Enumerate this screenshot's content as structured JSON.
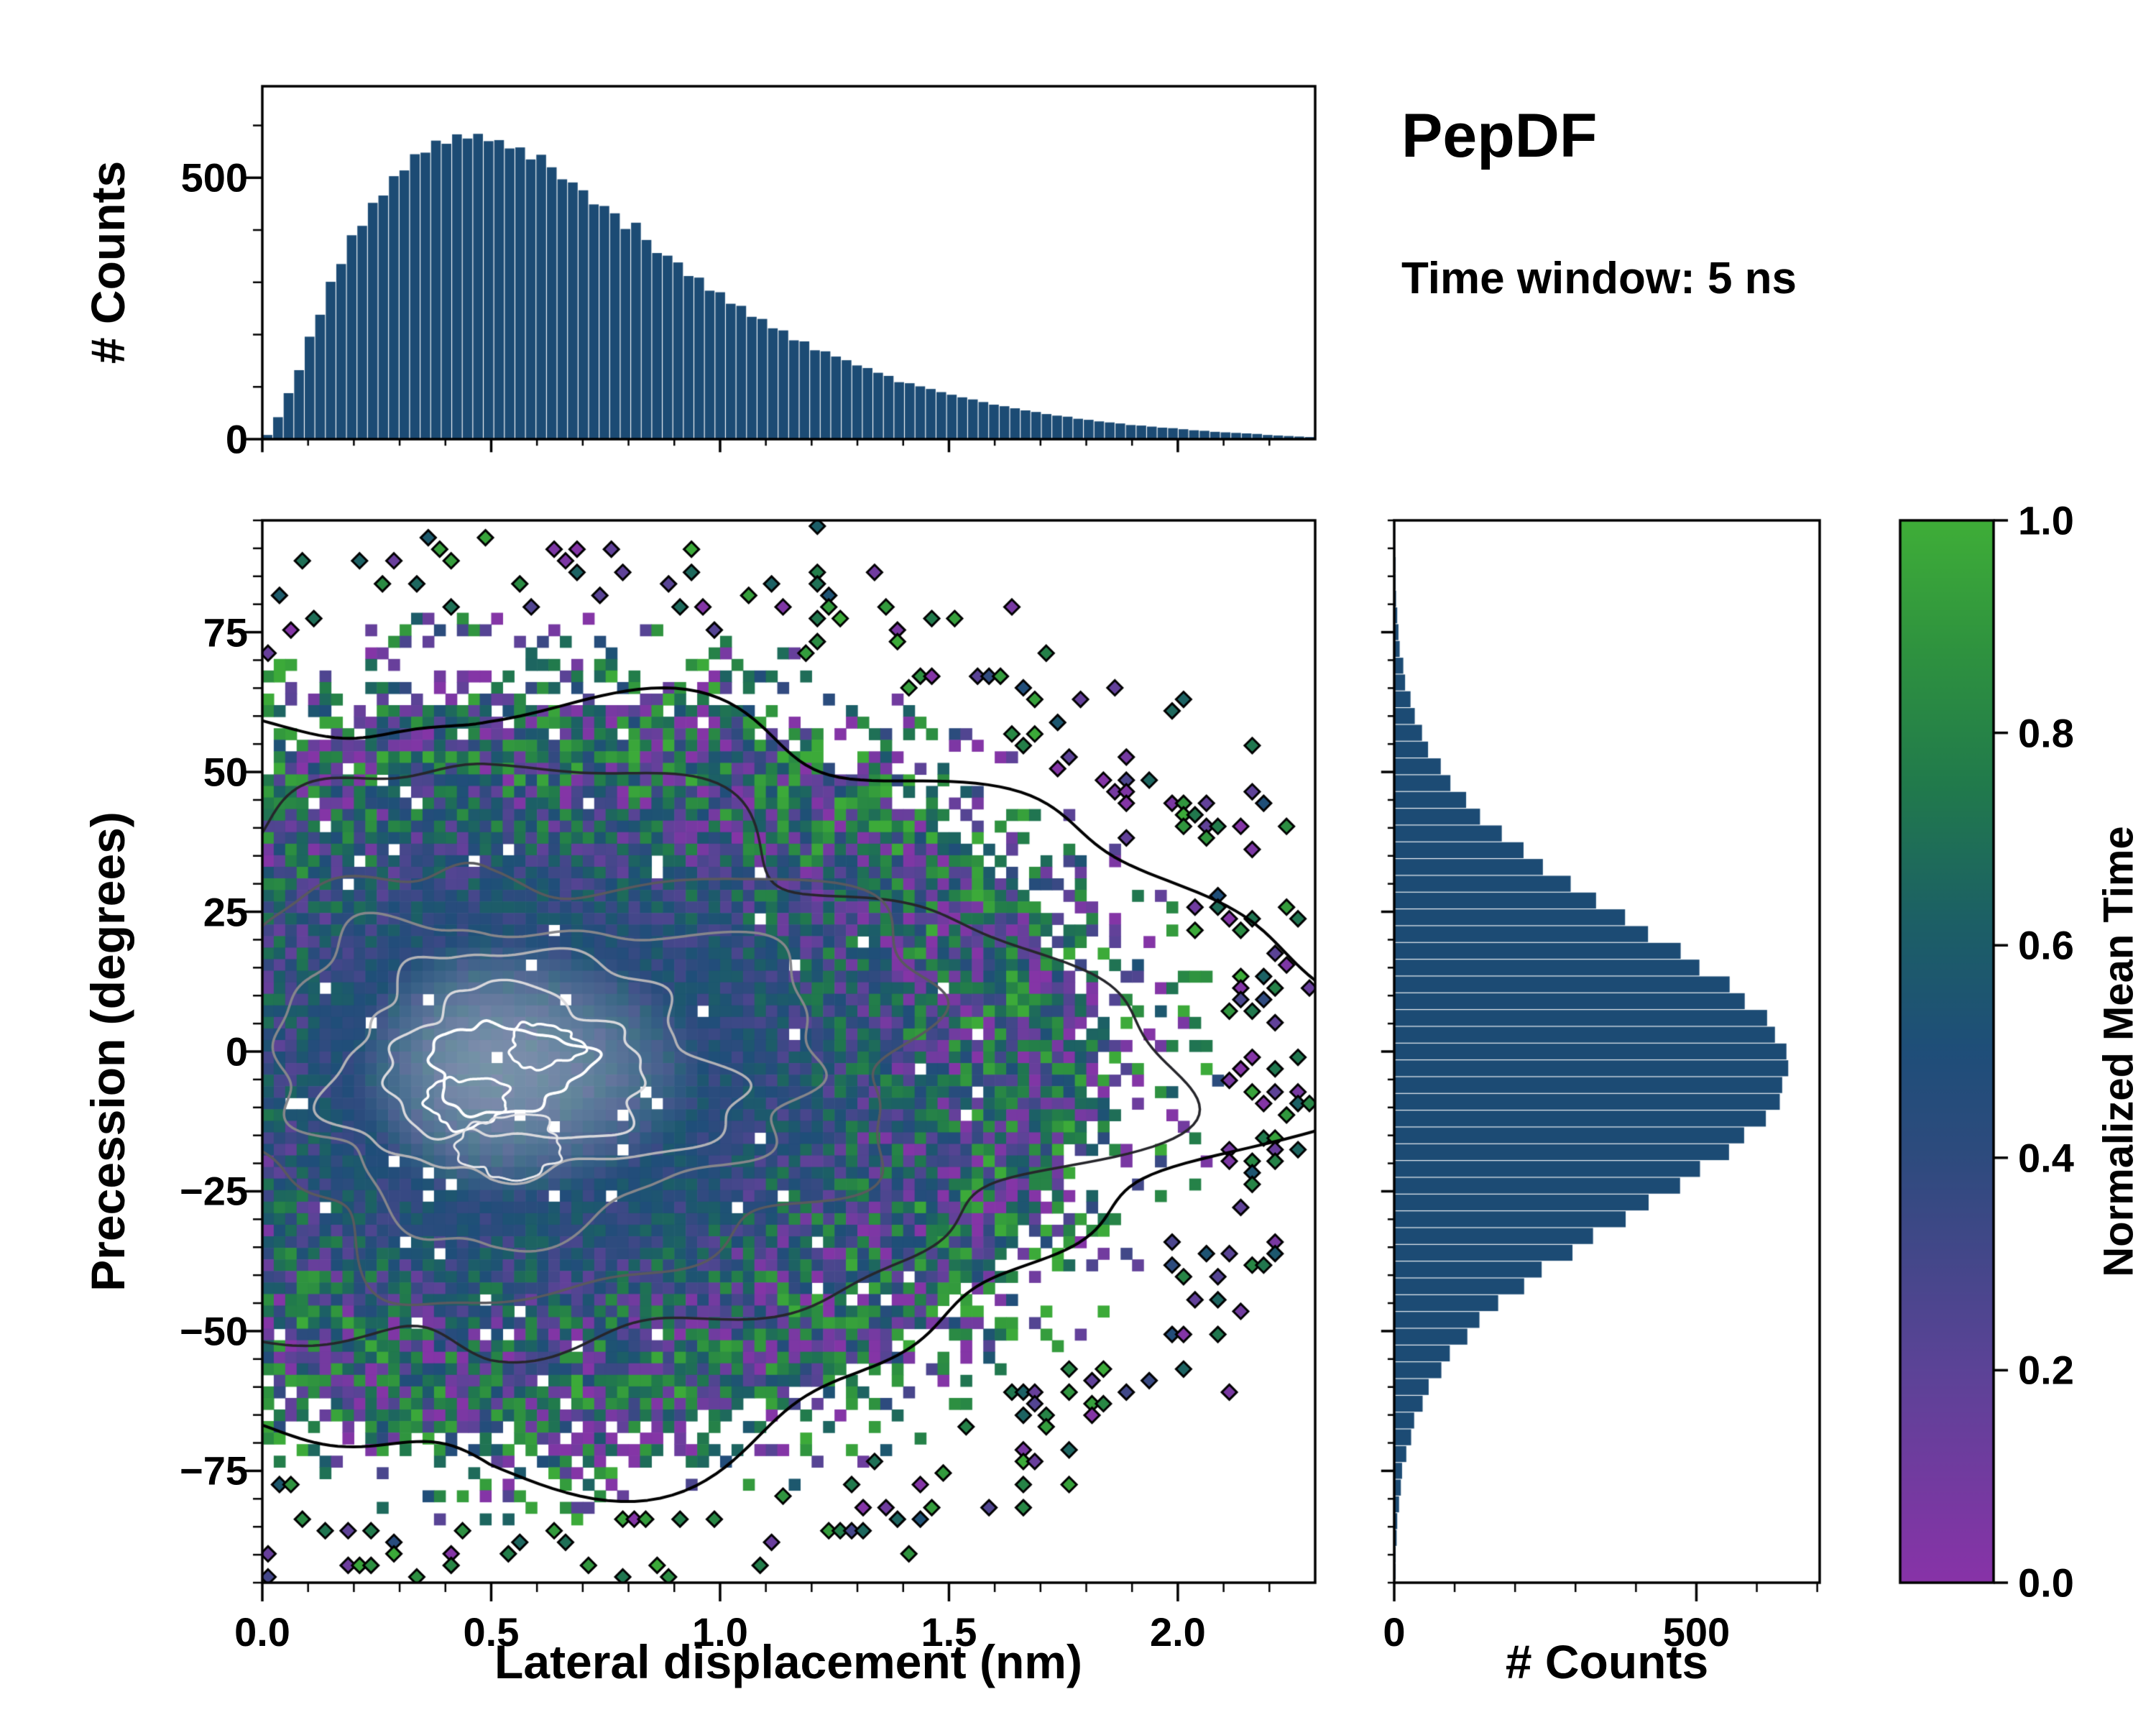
{
  "figure": {
    "title": "PepDF",
    "subtitle": "Time window: 5 ns",
    "background": "#ffffff",
    "text_color": "#000000"
  },
  "chart_data": {
    "type": "jointplot",
    "description": "2D histogram of precession vs lateral displacement colored by normalized mean time, with marginal count histograms and colorbar",
    "panels": [
      {
        "id": "top_hist",
        "type": "bar",
        "role": "marginal-histogram-x",
        "ylabel": "# Counts",
        "xlim": [
          0,
          2.3
        ],
        "ylim": [
          0,
          675
        ],
        "ytick_labels": [
          "0",
          "500"
        ],
        "ytick_values": [
          0,
          500
        ],
        "bin_start": 0,
        "bin_width": 0.023,
        "bar_color": "#1c4b74",
        "values": [
          8,
          42,
          88,
          132,
          196,
          238,
          301,
          335,
          390,
          408,
          452,
          466,
          503,
          514,
          545,
          548,
          571,
          565,
          583,
          575,
          584,
          570,
          572,
          556,
          558,
          535,
          544,
          520,
          497,
          491,
          476,
          449,
          446,
          432,
          402,
          414,
          381,
          356,
          351,
          338,
          312,
          309,
          284,
          281,
          259,
          255,
          234,
          230,
          212,
          208,
          189,
          187,
          170,
          168,
          158,
          151,
          141,
          136,
          127,
          121,
          109,
          107,
          101,
          96,
          90,
          85,
          80,
          76,
          71,
          66,
          63,
          59,
          55,
          52,
          48,
          45,
          43,
          39,
          37,
          34,
          32,
          30,
          27,
          26,
          24,
          22,
          21,
          19,
          17,
          16,
          14,
          13,
          12,
          11,
          10,
          8,
          7,
          6,
          5,
          4
        ]
      },
      {
        "id": "joint",
        "type": "heatmap",
        "xlabel": "Lateral displacement (nm)",
        "ylabel": "Precession (degrees)",
        "xlim": [
          0,
          2.3
        ],
        "ylim": [
          -95,
          95
        ],
        "xtick_labels": [
          "0.0",
          "0.5",
          "1.0",
          "1.5",
          "2.0"
        ],
        "xtick_values": [
          0,
          0.5,
          1,
          1.5,
          2
        ],
        "ytick_labels": [
          "−75",
          "−50",
          "−25",
          "0",
          "25",
          "50",
          "75"
        ],
        "ytick_values": [
          -75,
          -50,
          -25,
          0,
          25,
          50,
          75
        ],
        "color_field": "Normalized Mean Time",
        "grid": {
          "nx": 92,
          "ny": 92,
          "seed": 20250407
        },
        "density": {
          "center_x": 0.5,
          "center_y": -3,
          "sigma_x": 0.34,
          "sigma_y": 27,
          "right_skew": 1.55
        },
        "value_model": {
          "core_mean": 0.46,
          "core_spread": 0.1,
          "edge_spread": 0.6
        },
        "contour_center": [
          0.5,
          -3
        ],
        "contour_levels": [
          {
            "rx": 1.08,
            "ry": 68,
            "color": "#000000",
            "width": 4
          },
          {
            "rx": 0.84,
            "ry": 52,
            "color": "#26262b",
            "width": 3.5
          },
          {
            "rx": 0.62,
            "ry": 38,
            "color": "#59595e",
            "width": 3.5
          },
          {
            "rx": 0.46,
            "ry": 28,
            "color": "#86868b",
            "width": 3.5
          },
          {
            "rx": 0.33,
            "ry": 20,
            "color": "#b2b2b6",
            "width": 3.5
          },
          {
            "rx": 0.22,
            "ry": 13.5,
            "color": "#d9d9dd",
            "width": 3.5
          },
          {
            "rx": 0.13,
            "ry": 8,
            "color": "#ffffff",
            "width": 4
          }
        ]
      },
      {
        "id": "right_hist",
        "type": "bar",
        "role": "marginal-histogram-y",
        "orientation": "horizontal",
        "xlabel": "# Counts",
        "xlim": [
          0,
          704
        ],
        "xtick_labels": [
          "0",
          "500"
        ],
        "xtick_values": [
          0,
          500
        ],
        "ylim": [
          -95,
          95
        ],
        "bin_start": -93,
        "bin_width": 3,
        "bar_color": "#1c4b74",
        "values": [
          2,
          2,
          4,
          5,
          8,
          11,
          13,
          20,
          28,
          33,
          47,
          57,
          78,
          92,
          121,
          141,
          172,
          215,
          244,
          295,
          329,
          383,
          421,
          473,
          506,
          554,
          579,
          615,
          638,
          642,
          652,
          649,
          630,
          617,
          580,
          555,
          505,
          474,
          420,
          382,
          334,
          292,
          246,
          214,
          178,
          142,
          119,
          93,
          77,
          56,
          46,
          34,
          27,
          18,
          15,
          9,
          7,
          5,
          3,
          2,
          2,
          1,
          1
        ]
      },
      {
        "id": "colorbar",
        "type": "colorbar",
        "label": "Normalized Mean Time",
        "tick_labels": [
          "0.0",
          "0.2",
          "0.4",
          "0.6",
          "0.8",
          "1.0"
        ],
        "tick_values": [
          0,
          0.2,
          0.4,
          0.6,
          0.8,
          1.0
        ],
        "stops": [
          [
            0.0,
            "#8833a8"
          ],
          [
            0.2,
            "#5c4397"
          ],
          [
            0.4,
            "#2e4b7e"
          ],
          [
            0.5,
            "#1f4e79"
          ],
          [
            0.62,
            "#1c5f66"
          ],
          [
            0.75,
            "#217a4c"
          ],
          [
            0.88,
            "#2f933f"
          ],
          [
            1.0,
            "#3fae38"
          ]
        ]
      }
    ]
  }
}
